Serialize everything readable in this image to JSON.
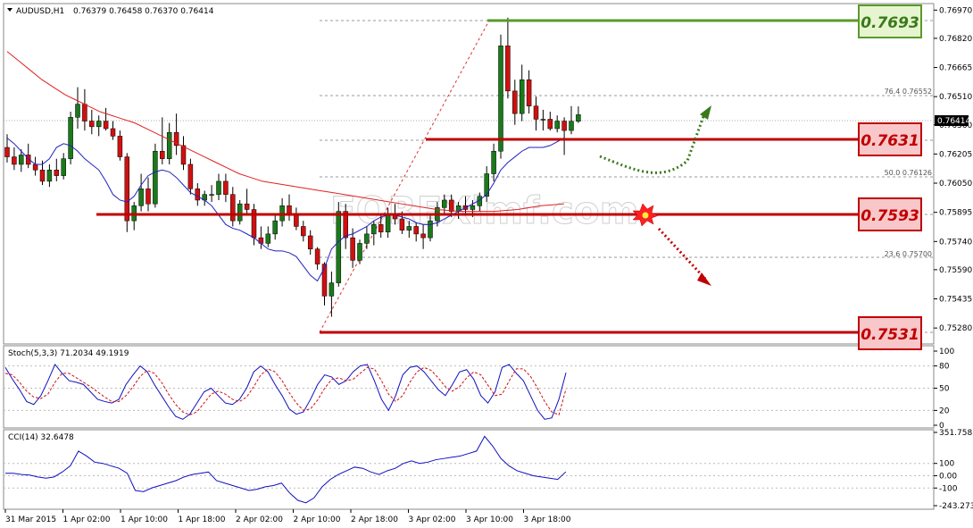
{
  "header": {
    "symbol": "AUDUSD,H1",
    "ohlc": "0.76379 0.76458 0.76370 0.76414",
    "stoch_label": "Stoch(5,3,3) 71.2034 49.1919",
    "cci_label": "CCI(14) 32.6478"
  },
  "watermark": "FOREXimf.com",
  "current_price_label": "0.76414",
  "colors": {
    "up": "#1a7a1a",
    "down": "#d01010",
    "ma_slow": "#e02020",
    "ma_fast": "#2020c0",
    "level_red": "#c00000",
    "level_green": "#5a9a2a",
    "box_red_fill": "#f8c7c9",
    "box_green_fill": "#e6f5cf",
    "stoch_main": "#1010c0",
    "stoch_signal": "#d01010",
    "cci": "#1010c0"
  },
  "chart_data": [
    {
      "type": "candlestick",
      "title": "AUDUSD,H1",
      "ylim": [
        0.752,
        0.77
      ],
      "y_ticks": [
        "0.76970",
        "0.76820",
        "0.76665",
        "0.76510",
        "0.76360",
        "0.76205",
        "0.76050",
        "0.75895",
        "0.75740",
        "0.75590",
        "0.75435",
        "0.75280"
      ],
      "x_ticks": [
        "31 Mar 2015",
        "1 Apr 02:00",
        "1 Apr 10:00",
        "1 Apr 18:00",
        "2 Apr 02:00",
        "2 Apr 10:00",
        "2 Apr 18:00",
        "3 Apr 02:00",
        "3 Apr 10:00",
        "3 Apr 18:00"
      ],
      "candles_ohlc": [
        [
          0.7624,
          0.7631,
          0.7616,
          0.7619
        ],
        [
          0.7619,
          0.7624,
          0.7612,
          0.7615
        ],
        [
          0.7615,
          0.7623,
          0.7611,
          0.762
        ],
        [
          0.762,
          0.7626,
          0.7613,
          0.7615
        ],
        [
          0.7615,
          0.7619,
          0.7609,
          0.7612
        ],
        [
          0.7612,
          0.7617,
          0.7604,
          0.7606
        ],
        [
          0.7606,
          0.7615,
          0.7603,
          0.7612
        ],
        [
          0.7612,
          0.7618,
          0.7606,
          0.7609
        ],
        [
          0.7609,
          0.7621,
          0.7607,
          0.7618
        ],
        [
          0.7618,
          0.7643,
          0.7615,
          0.764
        ],
        [
          0.764,
          0.7656,
          0.7634,
          0.7647
        ],
        [
          0.7647,
          0.7655,
          0.7633,
          0.7638
        ],
        [
          0.7638,
          0.7644,
          0.7631,
          0.7635
        ],
        [
          0.7635,
          0.7641,
          0.763,
          0.7638
        ],
        [
          0.7638,
          0.7645,
          0.7633,
          0.7634
        ],
        [
          0.7634,
          0.7638,
          0.7628,
          0.763
        ],
        [
          0.763,
          0.7633,
          0.7617,
          0.7619
        ],
        [
          0.7619,
          0.7621,
          0.7579,
          0.7585
        ],
        [
          0.7585,
          0.7595,
          0.758,
          0.7593
        ],
        [
          0.7593,
          0.761,
          0.759,
          0.7602
        ],
        [
          0.7602,
          0.7608,
          0.759,
          0.7594
        ],
        [
          0.7594,
          0.7626,
          0.7592,
          0.7622
        ],
        [
          0.7622,
          0.764,
          0.7615,
          0.7618
        ],
        [
          0.7618,
          0.7637,
          0.7615,
          0.7632
        ],
        [
          0.7632,
          0.7642,
          0.762,
          0.7625
        ],
        [
          0.7625,
          0.763,
          0.7612,
          0.7615
        ],
        [
          0.7615,
          0.7618,
          0.7599,
          0.7602
        ],
        [
          0.7602,
          0.7605,
          0.7593,
          0.7596
        ],
        [
          0.7596,
          0.7601,
          0.7593,
          0.7599
        ],
        [
          0.7599,
          0.7604,
          0.7595,
          0.7599
        ],
        [
          0.7599,
          0.761,
          0.7596,
          0.7606
        ],
        [
          0.7606,
          0.761,
          0.7595,
          0.7599
        ],
        [
          0.7599,
          0.7603,
          0.7582,
          0.7585
        ],
        [
          0.7585,
          0.7596,
          0.7583,
          0.7594
        ],
        [
          0.7594,
          0.7602,
          0.7589,
          0.7591
        ],
        [
          0.7591,
          0.7594,
          0.7572,
          0.7576
        ],
        [
          0.7576,
          0.7582,
          0.757,
          0.7573
        ],
        [
          0.7573,
          0.7582,
          0.7571,
          0.7578
        ],
        [
          0.7578,
          0.7588,
          0.7575,
          0.7585
        ],
        [
          0.7585,
          0.7597,
          0.7582,
          0.7593
        ],
        [
          0.7593,
          0.7599,
          0.7585,
          0.7588
        ],
        [
          0.7588,
          0.7592,
          0.758,
          0.7582
        ],
        [
          0.7582,
          0.7585,
          0.7574,
          0.7577
        ],
        [
          0.7577,
          0.758,
          0.7567,
          0.757
        ],
        [
          0.757,
          0.7571,
          0.7559,
          0.7562
        ],
        [
          0.7562,
          0.7563,
          0.754,
          0.7545
        ],
        [
          0.7545,
          0.7558,
          0.7534,
          0.7552
        ],
        [
          0.7552,
          0.7595,
          0.755,
          0.759
        ],
        [
          0.759,
          0.7594,
          0.757,
          0.7576
        ],
        [
          0.7576,
          0.7581,
          0.756,
          0.7564
        ],
        [
          0.7564,
          0.7575,
          0.7562,
          0.7573
        ],
        [
          0.7573,
          0.7582,
          0.757,
          0.7578
        ],
        [
          0.7578,
          0.7585,
          0.7572,
          0.7583
        ],
        [
          0.7583,
          0.7588,
          0.7576,
          0.7579
        ],
        [
          0.7579,
          0.7592,
          0.7576,
          0.7588
        ],
        [
          0.7588,
          0.7594,
          0.7583,
          0.7586
        ],
        [
          0.7586,
          0.759,
          0.7578,
          0.758
        ],
        [
          0.758,
          0.7585,
          0.7576,
          0.7582
        ],
        [
          0.7582,
          0.7584,
          0.7574,
          0.7578
        ],
        [
          0.7578,
          0.7583,
          0.757,
          0.7576
        ],
        [
          0.7576,
          0.7588,
          0.7574,
          0.7585
        ],
        [
          0.7585,
          0.7595,
          0.7582,
          0.7592
        ],
        [
          0.7592,
          0.7599,
          0.7588,
          0.7596
        ],
        [
          0.7596,
          0.7599,
          0.7587,
          0.759
        ],
        [
          0.759,
          0.7595,
          0.7586,
          0.7593
        ],
        [
          0.7593,
          0.7598,
          0.7588,
          0.7591
        ],
        [
          0.7591,
          0.7596,
          0.7587,
          0.7593
        ],
        [
          0.7593,
          0.76,
          0.759,
          0.7598
        ],
        [
          0.7598,
          0.7614,
          0.7595,
          0.761
        ],
        [
          0.761,
          0.7626,
          0.7606,
          0.7622
        ],
        [
          0.7622,
          0.7684,
          0.7618,
          0.7678
        ],
        [
          0.7678,
          0.7693,
          0.765,
          0.7654
        ],
        [
          0.7654,
          0.766,
          0.7636,
          0.7642
        ],
        [
          0.7642,
          0.7668,
          0.7638,
          0.766
        ],
        [
          0.766,
          0.7665,
          0.7642,
          0.7646
        ],
        [
          0.7646,
          0.7651,
          0.7633,
          0.7639
        ],
        [
          0.7639,
          0.7644,
          0.7633,
          0.7639
        ],
        [
          0.7639,
          0.7643,
          0.7633,
          0.7634
        ],
        [
          0.7634,
          0.7641,
          0.7632,
          0.7638
        ],
        [
          0.7638,
          0.764,
          0.762,
          0.7633
        ],
        [
          0.7633,
          0.7646,
          0.7631,
          0.76379
        ],
        [
          0.76379,
          0.76458,
          0.7637,
          0.76414
        ]
      ],
      "ma_slow": [
        0.7675,
        0.767,
        0.7665,
        0.766,
        0.7656,
        0.7652,
        0.7649,
        0.7646,
        0.7643,
        0.7641,
        0.7639,
        0.7637,
        0.7634,
        0.7631,
        0.7628,
        0.7625,
        0.7622,
        0.7619,
        0.7616,
        0.7613,
        0.761,
        0.7608,
        0.7606,
        0.7605,
        0.7604,
        0.7603,
        0.7602,
        0.7601,
        0.76,
        0.7599,
        0.7598,
        0.7597,
        0.7596,
        0.7595,
        0.7594,
        0.7593,
        0.7592,
        0.7591,
        0.75905,
        0.759,
        0.759,
        0.759,
        0.759,
        0.75905,
        0.7591,
        0.7592,
        0.7593,
        0.75935,
        0.7594
      ],
      "ma_fast": [
        0.7629,
        0.7626,
        0.7622,
        0.7618,
        0.7615,
        0.7615,
        0.7618,
        0.7624,
        0.7626,
        0.7625,
        0.7622,
        0.7618,
        0.7615,
        0.7612,
        0.7606,
        0.7599,
        0.7596,
        0.7595,
        0.7598,
        0.7604,
        0.7609,
        0.7611,
        0.7612,
        0.7611,
        0.7608,
        0.7604,
        0.76,
        0.7598,
        0.7596,
        0.7593,
        0.7588,
        0.7583,
        0.7581,
        0.758,
        0.7578,
        0.7576,
        0.7573,
        0.757,
        0.7569,
        0.7569,
        0.7568,
        0.7566,
        0.7561,
        0.7556,
        0.7553,
        0.756,
        0.757,
        0.7574,
        0.7577,
        0.7578,
        0.758,
        0.7582,
        0.7585,
        0.7587,
        0.7588,
        0.7588,
        0.7587,
        0.7586,
        0.7584,
        0.7583,
        0.7583,
        0.7584,
        0.7586,
        0.7588,
        0.759,
        0.7592,
        0.7594,
        0.7596,
        0.7599,
        0.7605,
        0.7612,
        0.7616,
        0.7619,
        0.7622,
        0.7624,
        0.7624,
        0.7624,
        0.7625,
        0.7627,
        0.7629
      ]
    },
    {
      "type": "line",
      "title": "Stoch(5,3,3) 71.2034 49.1919",
      "ylim": [
        0,
        100
      ],
      "y_ticks": [
        "100",
        "80",
        "50",
        "20",
        "0"
      ],
      "series": [
        {
          "name": "Stoch",
          "values": [
            78,
            62,
            48,
            32,
            28,
            40,
            60,
            82,
            70,
            60,
            58,
            55,
            45,
            35,
            32,
            30,
            35,
            55,
            68,
            80,
            72,
            55,
            40,
            25,
            12,
            8,
            15,
            30,
            45,
            50,
            40,
            30,
            28,
            35,
            50,
            72,
            80,
            72,
            55,
            40,
            22,
            15,
            18,
            35,
            55,
            68,
            65,
            55,
            60,
            72,
            80,
            82,
            60,
            35,
            20,
            40,
            68,
            78,
            80,
            72,
            60,
            48,
            40,
            55,
            72,
            75,
            62,
            40,
            30,
            45,
            78,
            82,
            70,
            60,
            40,
            20,
            8,
            10,
            35,
            71
          ]
        },
        {
          "name": "Signal",
          "values": [
            70,
            68,
            58,
            46,
            38,
            36,
            42,
            58,
            70,
            70,
            64,
            58,
            52,
            45,
            38,
            32,
            32,
            40,
            52,
            66,
            74,
            70,
            58,
            42,
            28,
            18,
            14,
            18,
            30,
            42,
            46,
            42,
            35,
            32,
            38,
            52,
            68,
            76,
            72,
            60,
            44,
            30,
            20,
            22,
            34,
            50,
            62,
            64,
            60,
            62,
            70,
            78,
            76,
            60,
            42,
            32,
            40,
            58,
            72,
            78,
            74,
            64,
            52,
            46,
            52,
            64,
            72,
            68,
            54,
            40,
            42,
            60,
            76,
            76,
            66,
            50,
            32,
            18,
            14,
            49
          ]
        }
      ]
    },
    {
      "type": "line",
      "title": "CCI(14) 32.6478",
      "ylim": [
        -243.2731,
        351.7587
      ],
      "y_ticks": [
        "351.7587",
        "100",
        "0.00",
        "-100",
        "-243.2731"
      ],
      "series": [
        {
          "name": "CCI",
          "values": [
            20,
            20,
            10,
            5,
            -10,
            -20,
            -10,
            30,
            80,
            200,
            160,
            110,
            100,
            80,
            60,
            20,
            -120,
            -130,
            -100,
            -80,
            -60,
            -40,
            -10,
            10,
            20,
            30,
            -40,
            -60,
            -80,
            -100,
            -120,
            -110,
            -90,
            -80,
            -60,
            -140,
            -200,
            -220,
            -180,
            -90,
            -30,
            10,
            40,
            70,
            60,
            30,
            10,
            40,
            60,
            100,
            120,
            100,
            110,
            130,
            140,
            150,
            160,
            180,
            200,
            320,
            240,
            140,
            80,
            40,
            20,
            0,
            -10,
            -20,
            -30,
            32
          ]
        }
      ]
    }
  ],
  "levels": [
    {
      "label": "0.7693",
      "color": "green"
    },
    {
      "label": "0.7631",
      "color": "red"
    },
    {
      "label": "0.7593",
      "color": "red"
    },
    {
      "label": "0.7531",
      "color": "red"
    }
  ],
  "fib_labels": [
    "76.4  0.76552",
    "50.0  0.76126",
    "23.6  0.75700"
  ]
}
